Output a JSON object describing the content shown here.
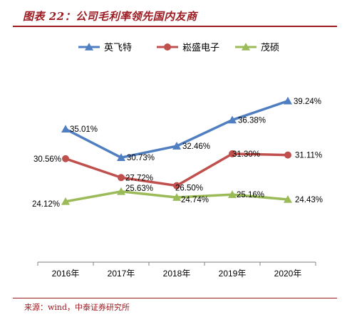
{
  "header": {
    "title": "图表 22：公司毛利率领先国内友商"
  },
  "footer": {
    "source": "来源：wind，中泰证券研究所"
  },
  "colors": {
    "accent": "#9b1b21"
  },
  "chart_data": {
    "type": "line",
    "categories": [
      "2016年",
      "2017年",
      "2018年",
      "2019年",
      "2020年"
    ],
    "ylim": [
      15,
      45
    ],
    "grid": false,
    "legend_position": "top",
    "series": [
      {
        "name": "英飞特",
        "color": "#4f7fc0",
        "marker": "triangle",
        "values": [
          35.01,
          30.73,
          32.46,
          36.38,
          39.24
        ],
        "labels": [
          "35.01%",
          "30.73%",
          "32.46%",
          "36.38%",
          "39.24%"
        ]
      },
      {
        "name": "崧盛电子",
        "color": "#c0504d",
        "marker": "circle",
        "values": [
          30.56,
          27.72,
          26.5,
          31.3,
          31.11
        ],
        "labels": [
          "30.56%",
          "27.72%",
          "26.50%",
          "31.30%",
          "31.11%"
        ]
      },
      {
        "name": "茂硕",
        "color": "#9bbb59",
        "marker": "triangle",
        "values": [
          24.12,
          25.63,
          24.74,
          25.16,
          24.43
        ],
        "labels": [
          "24.12%",
          "25.63%",
          "24.74%",
          "25.16%",
          "24.43%"
        ]
      }
    ]
  }
}
